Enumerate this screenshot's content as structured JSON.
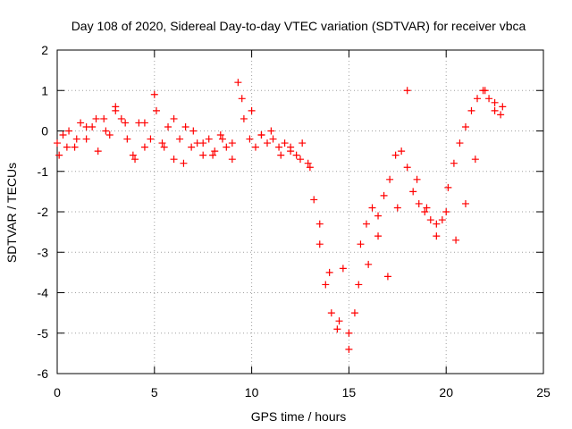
{
  "chart_data": {
    "type": "scatter",
    "title": "Day 108 of 2020, Sidereal Day-to-day VTEC variation (SDTVAR) for receiver vbca",
    "xlabel": "GPS time / hours",
    "ylabel": "SDTVAR / TECUs",
    "xlim": [
      0,
      25
    ],
    "ylim": [
      -6,
      2
    ],
    "xticks": [
      0,
      5,
      10,
      15,
      20,
      25
    ],
    "yticks": [
      -6,
      -5,
      -4,
      -3,
      -2,
      -1,
      0,
      1,
      2
    ],
    "xtick_labels": [
      "0",
      "5",
      "10",
      "15",
      "20",
      "25"
    ],
    "ytick_labels": [
      "-6",
      "-5",
      "-4",
      "-3",
      "-2",
      "-1",
      "0",
      "1",
      "2"
    ],
    "grid": true,
    "marker": "+",
    "color": "#ff0000",
    "series": [
      {
        "x": [
          0.0,
          0.3,
          0.6,
          0.9,
          1.2,
          1.5,
          1.8,
          2.1,
          2.4,
          2.7,
          3.0,
          3.3,
          3.6,
          3.9,
          4.2,
          4.5,
          4.8,
          5.1,
          5.4,
          5.7,
          6.0,
          6.3,
          6.6,
          6.9,
          7.2,
          7.5,
          7.8,
          8.1,
          8.4,
          8.7,
          9.0,
          9.3,
          9.6,
          9.9,
          10.2,
          10.5,
          10.8,
          11.1,
          11.4,
          11.7,
          12.0,
          12.3,
          12.6,
          12.9,
          13.2,
          13.5,
          13.8,
          14.1,
          14.4,
          14.7,
          15.0,
          15.3,
          15.6,
          15.9,
          16.2,
          16.5,
          16.8,
          17.1,
          17.4,
          17.7,
          18.0,
          18.3,
          18.6,
          18.9,
          19.2,
          19.5,
          19.8,
          20.1,
          20.4,
          20.7,
          21.0,
          21.3,
          21.6,
          21.9,
          22.2,
          22.5,
          22.8
        ],
        "y": [
          -0.3,
          -0.1,
          0.0,
          -0.4,
          0.2,
          -0.2,
          0.1,
          -0.5,
          0.3,
          -0.1,
          0.5,
          0.3,
          -0.2,
          -0.6,
          0.2,
          -0.4,
          -0.2,
          0.5,
          -0.3,
          0.1,
          -0.7,
          -0.2,
          0.1,
          -0.4,
          -0.3,
          -0.6,
          -0.2,
          -0.5,
          -0.1,
          -0.4,
          -0.3,
          1.2,
          0.3,
          -0.2,
          -0.4,
          -0.1,
          -0.3,
          -0.2,
          -0.4,
          -0.3,
          -0.5,
          -0.6,
          -0.3,
          -0.8,
          -1.7,
          -2.8,
          -3.8,
          -4.5,
          -4.9,
          -3.4,
          -5.4,
          -4.5,
          -2.8,
          -2.3,
          -1.9,
          -2.6,
          -1.6,
          -1.2,
          -0.6,
          -0.5,
          -0.9,
          -1.5,
          -1.8,
          -2.0,
          -2.2,
          -2.6,
          -2.2,
          -1.4,
          -0.8,
          -0.3,
          0.1,
          0.5,
          0.8,
          1.0,
          0.8,
          0.5,
          0.4
        ]
      },
      {
        "x": [
          0.1,
          0.5,
          1.0,
          1.5,
          2.0,
          2.5,
          3.0,
          3.5,
          4.0,
          4.5,
          5.0,
          5.5,
          6.0,
          6.5,
          7.0,
          7.5,
          8.0,
          8.5,
          9.0,
          9.5,
          10.0,
          10.5,
          11.0,
          11.5,
          12.0,
          12.5,
          13.0,
          13.5,
          14.0,
          14.5,
          15.0,
          15.5,
          16.0,
          16.5,
          17.0,
          17.5,
          18.0,
          18.5,
          19.0,
          19.5,
          20.0,
          20.5,
          21.0,
          21.5,
          22.0,
          22.5,
          22.9
        ],
        "y": [
          -0.6,
          -0.4,
          -0.2,
          0.1,
          0.3,
          0.0,
          0.6,
          0.2,
          -0.7,
          0.2,
          0.9,
          -0.4,
          0.3,
          -0.8,
          0.0,
          -0.3,
          -0.6,
          -0.2,
          -0.7,
          0.8,
          0.5,
          -0.1,
          0.0,
          -0.6,
          -0.4,
          -0.7,
          -0.9,
          -2.3,
          -3.5,
          -4.7,
          -5.0,
          -3.8,
          -3.3,
          -2.1,
          -3.6,
          -1.9,
          1.0,
          -1.2,
          -1.9,
          -2.3,
          -2.0,
          -2.7,
          -1.8,
          -0.7,
          1.0,
          0.7,
          0.6
        ]
      }
    ]
  }
}
